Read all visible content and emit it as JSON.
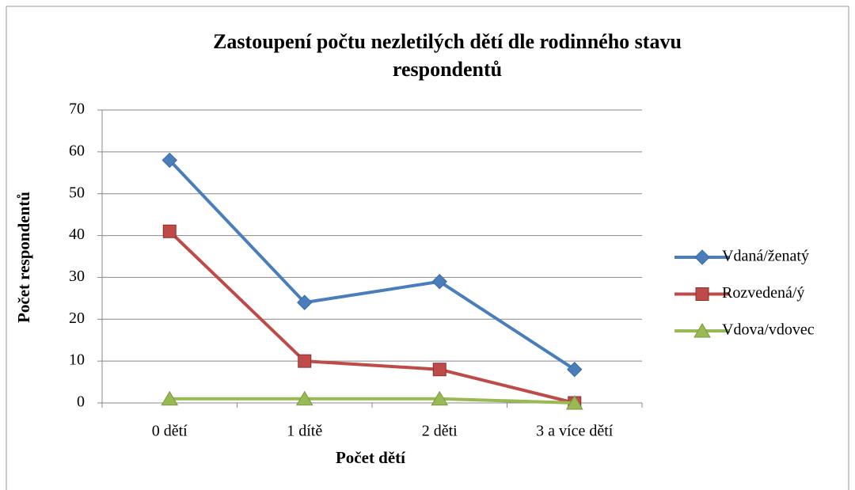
{
  "chart_data": {
    "type": "line",
    "title": [
      "Zastoupení počtu nezletilých dětí dle rodinného stavu",
      "respondentů"
    ],
    "x_label": "Počet dětí",
    "y_label": "Počet respondentů",
    "categories": [
      "0 dětí",
      "1 dítě",
      "2 děti",
      "3 a více dětí"
    ],
    "series": [
      {
        "name": "Vdaná/ženatý",
        "color": "#4a7ebb",
        "marker": "diamond",
        "values": [
          58,
          24,
          29,
          8
        ]
      },
      {
        "name": "Rozvedená/ý",
        "color": "#be4b48",
        "marker": "square",
        "values": [
          41,
          10,
          8,
          0
        ]
      },
      {
        "name": "Vdova/vdovec",
        "color": "#98b954",
        "marker": "triangle",
        "values": [
          1,
          1,
          1,
          0
        ]
      }
    ],
    "ylim": [
      0,
      70
    ],
    "yticks": [
      0,
      10,
      20,
      30,
      40,
      50,
      60,
      70
    ],
    "grid": true,
    "legend": "right"
  }
}
